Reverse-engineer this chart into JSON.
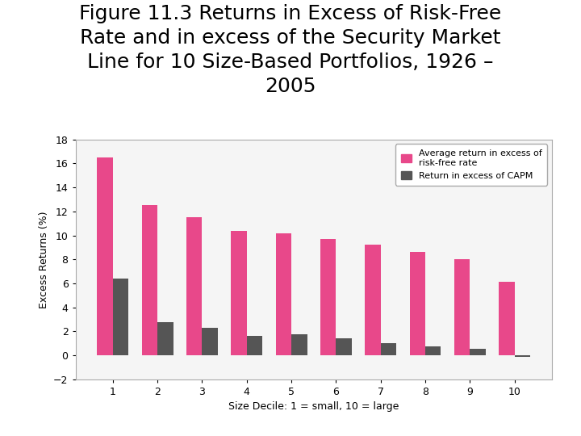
{
  "title_line1": "Figure 11.3 Returns in Excess of Risk-Free",
  "title_line2": "Rate and in excess of the Security Market",
  "title_line3": "Line for 10 Size-Based Portfolios, 1926 –",
  "title_line4": "2005",
  "xlabel": "Size Decile: 1 = small, 10 = large",
  "ylabel": "Excess Returns (%)",
  "categories": [
    1,
    2,
    3,
    4,
    5,
    6,
    7,
    8,
    9,
    10
  ],
  "avg_excess_rf": [
    16.5,
    12.5,
    11.55,
    10.4,
    10.2,
    9.7,
    9.2,
    8.6,
    8.05,
    6.15
  ],
  "excess_capm": [
    6.4,
    2.8,
    2.3,
    1.6,
    1.75,
    1.45,
    1.05,
    0.75,
    0.55,
    -0.1
  ],
  "bar_color_pink": "#E8488A",
  "bar_color_gray": "#555555",
  "ylim": [
    -2,
    18
  ],
  "yticks": [
    -2,
    0,
    2,
    4,
    6,
    8,
    10,
    12,
    14,
    16,
    18
  ],
  "legend_label1": "Average return in excess of\nrisk-free rate",
  "legend_label2": "Return in excess of CAPM",
  "title_fontsize": 18,
  "axis_fontsize": 9,
  "legend_fontsize": 8,
  "bar_width": 0.35
}
